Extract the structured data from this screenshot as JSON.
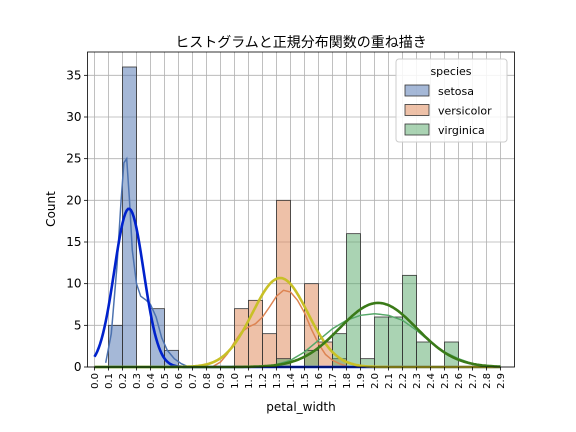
{
  "chart_data": {
    "type": "bar",
    "title": "ヒストグラムと正規分布関数の重ね描き",
    "xlabel": "petal_width",
    "ylabel": "Count",
    "xlim": [
      -0.05,
      3.0
    ],
    "ylim": [
      0,
      37.8
    ],
    "grid": true,
    "x_ticks": [
      "0.0",
      "0.1",
      "0.2",
      "0.3",
      "0.4",
      "0.5",
      "0.6",
      "0.7",
      "0.8",
      "0.9",
      "1.0",
      "1.1",
      "1.2",
      "1.3",
      "1.4",
      "1.5",
      "1.6",
      "1.7",
      "1.8",
      "1.9",
      "2.0",
      "2.1",
      "2.2",
      "2.3",
      "2.4",
      "2.5",
      "2.6",
      "2.7",
      "2.8",
      "2.9"
    ],
    "y_ticks": [
      0,
      5,
      10,
      15,
      20,
      25,
      30,
      35
    ],
    "legend": {
      "title": "species",
      "position": "top-right",
      "entries": [
        "setosa",
        "versicolor",
        "virginica"
      ]
    },
    "bin_width": 0.1,
    "series": [
      {
        "name": "setosa",
        "color": "#4c72b0",
        "bins": [
          {
            "x": 0.1,
            "count": 5
          },
          {
            "x": 0.2,
            "count": 36
          },
          {
            "x": 0.4,
            "count": 7
          },
          {
            "x": 0.5,
            "count": 2
          }
        ],
        "kde": [
          [
            0.08,
            0.5
          ],
          [
            0.12,
            4
          ],
          [
            0.16,
            12
          ],
          [
            0.19,
            20
          ],
          [
            0.21,
            24.5
          ],
          [
            0.23,
            25
          ],
          [
            0.25,
            20
          ],
          [
            0.27,
            14
          ],
          [
            0.3,
            10
          ],
          [
            0.33,
            8.5
          ],
          [
            0.37,
            8
          ],
          [
            0.4,
            7.5
          ],
          [
            0.44,
            6
          ],
          [
            0.48,
            3.5
          ],
          [
            0.52,
            2
          ],
          [
            0.57,
            1
          ],
          [
            0.62,
            0.4
          ],
          [
            0.66,
            0.1
          ]
        ],
        "normal_fit": {
          "mean": 0.246,
          "std": 0.105,
          "color": "#0022cc"
        }
      },
      {
        "name": "versicolor",
        "color": "#dd8452",
        "bins": [
          {
            "x": 1.0,
            "count": 7
          },
          {
            "x": 1.1,
            "count": 8
          },
          {
            "x": 1.2,
            "count": 4
          },
          {
            "x": 1.3,
            "count": 20
          },
          {
            "x": 1.5,
            "count": 10
          },
          {
            "x": 1.6,
            "count": 3
          },
          {
            "x": 1.7,
            "count": 1
          }
        ],
        "kde": [
          [
            0.85,
            0.1
          ],
          [
            0.9,
            0.6
          ],
          [
            0.95,
            1.6
          ],
          [
            1.0,
            3
          ],
          [
            1.05,
            4.2
          ],
          [
            1.1,
            4.8
          ],
          [
            1.15,
            5.2
          ],
          [
            1.2,
            6
          ],
          [
            1.25,
            7.2
          ],
          [
            1.3,
            8.5
          ],
          [
            1.35,
            9.2
          ],
          [
            1.4,
            9
          ],
          [
            1.45,
            8
          ],
          [
            1.5,
            6.5
          ],
          [
            1.55,
            4.5
          ],
          [
            1.6,
            2.8
          ],
          [
            1.65,
            1.5
          ],
          [
            1.7,
            0.8
          ],
          [
            1.75,
            0.4
          ],
          [
            1.8,
            0.1
          ]
        ],
        "normal_fit": {
          "mean": 1.326,
          "std": 0.198,
          "color": "#c8c027"
        }
      },
      {
        "name": "virginica",
        "color": "#55a868",
        "bins": [
          {
            "x": 1.3,
            "count": 1
          },
          {
            "x": 1.5,
            "count": 2
          },
          {
            "x": 1.7,
            "count": 4
          },
          {
            "x": 1.8,
            "count": 16
          },
          {
            "x": 1.9,
            "count": 1
          },
          {
            "x": 2.0,
            "count": 6
          },
          {
            "x": 2.1,
            "count": 6
          },
          {
            "x": 2.2,
            "count": 11
          },
          {
            "x": 2.3,
            "count": 3
          },
          {
            "x": 2.5,
            "count": 3
          }
        ],
        "kde": [
          [
            1.3,
            0.3
          ],
          [
            1.4,
            0.8
          ],
          [
            1.5,
            1.8
          ],
          [
            1.6,
            3.2
          ],
          [
            1.7,
            4.6
          ],
          [
            1.8,
            5.6
          ],
          [
            1.9,
            6.2
          ],
          [
            2.0,
            6.4
          ],
          [
            2.1,
            6.2
          ],
          [
            2.2,
            5.6
          ],
          [
            2.3,
            4.4
          ],
          [
            2.4,
            3
          ],
          [
            2.5,
            1.8
          ],
          [
            2.6,
            1
          ],
          [
            2.7,
            0.4
          ],
          [
            2.8,
            0.1
          ]
        ],
        "normal_fit": {
          "mean": 2.026,
          "std": 0.275,
          "color": "#3a7a18"
        }
      }
    ]
  }
}
